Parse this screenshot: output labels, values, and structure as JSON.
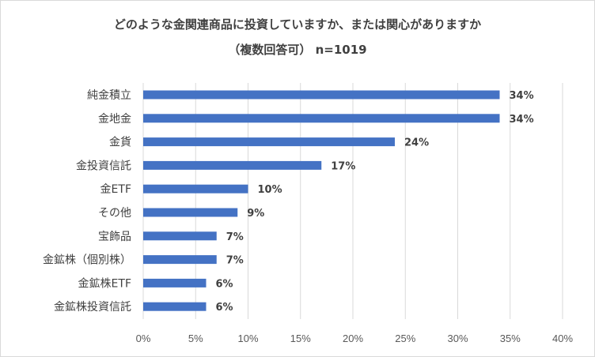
{
  "chart_data": {
    "type": "bar",
    "orientation": "horizontal",
    "title": "どのような金関連商品に投資していますか、または関心がありますか",
    "subtitle": "（複数回答可） n=1019",
    "categories": [
      "純金積立",
      "金地金",
      "金貨",
      "金投資信託",
      "金ETF",
      "その他",
      "宝飾品",
      "金鉱株（個別株）",
      "金鉱株ETF",
      "金鉱株投資信託"
    ],
    "values": [
      34,
      34,
      24,
      17,
      10,
      9,
      7,
      7,
      6,
      6
    ],
    "value_labels": [
      "34%",
      "34%",
      "24%",
      "17%",
      "10%",
      "9%",
      "7%",
      "7%",
      "6%",
      "6%"
    ],
    "xlim": [
      0,
      40
    ],
    "xticks": [
      0,
      5,
      10,
      15,
      20,
      25,
      30,
      35,
      40
    ],
    "xtick_labels": [
      "0%",
      "5%",
      "10%",
      "15%",
      "20%",
      "25%",
      "30%",
      "35%",
      "40%"
    ],
    "grid": true,
    "bar_color": "#4472c4"
  }
}
